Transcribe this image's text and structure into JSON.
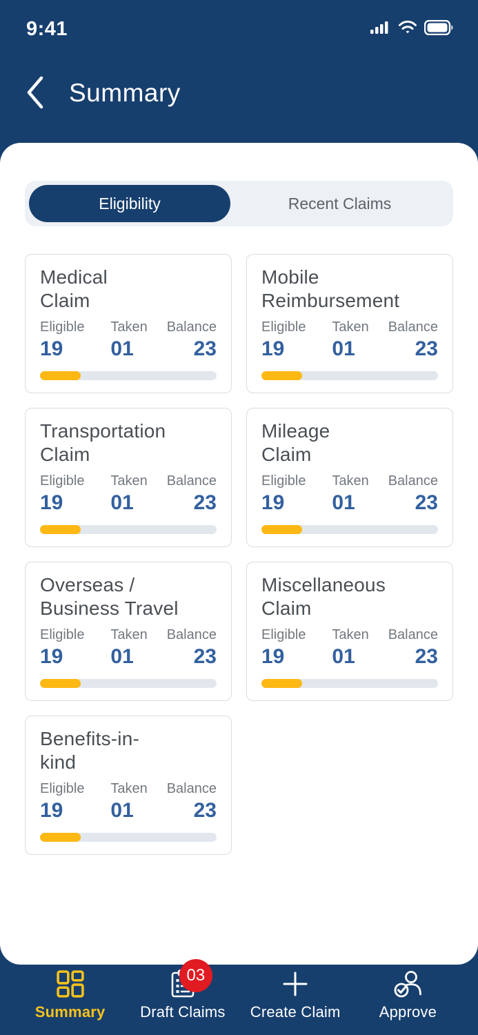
{
  "status_bar": {
    "time": "9:41",
    "icons": [
      "signal-icon",
      "wifi-icon",
      "battery-icon"
    ]
  },
  "header": {
    "back_icon": "chevron-left-icon",
    "title": "Summary"
  },
  "segmented_control": {
    "selected": "Eligibility",
    "options": [
      {
        "label": "Eligibility"
      },
      {
        "label": "Recent Claims"
      }
    ]
  },
  "cards": [
    {
      "title": "Medical\nClaim",
      "stats": [
        {
          "label": "Eligible",
          "value": "19"
        },
        {
          "label": "Taken",
          "value": "01"
        },
        {
          "label": "Balance",
          "value": "23"
        }
      ],
      "progress_percent": 23
    },
    {
      "title": "Mobile\nReimbursement",
      "stats": [
        {
          "label": "Eligible",
          "value": "19"
        },
        {
          "label": "Taken",
          "value": "01"
        },
        {
          "label": "Balance",
          "value": "23"
        }
      ],
      "progress_percent": 23
    },
    {
      "title": "Transportation\nClaim",
      "stats": [
        {
          "label": "Eligible",
          "value": "19"
        },
        {
          "label": "Taken",
          "value": "01"
        },
        {
          "label": "Balance",
          "value": "23"
        }
      ],
      "progress_percent": 23
    },
    {
      "title": "Mileage\nClaim",
      "stats": [
        {
          "label": "Eligible",
          "value": "19"
        },
        {
          "label": "Taken",
          "value": "01"
        },
        {
          "label": "Balance",
          "value": "23"
        }
      ],
      "progress_percent": 23
    },
    {
      "title": "Overseas /\nBusiness Travel",
      "stats": [
        {
          "label": "Eligible",
          "value": "19"
        },
        {
          "label": "Taken",
          "value": "01"
        },
        {
          "label": "Balance",
          "value": "23"
        }
      ],
      "progress_percent": 23
    },
    {
      "title": "Miscellaneous\nClaim",
      "stats": [
        {
          "label": "Eligible",
          "value": "19"
        },
        {
          "label": "Taken",
          "value": "01"
        },
        {
          "label": "Balance",
          "value": "23"
        }
      ],
      "progress_percent": 23
    },
    {
      "title": "Benefits-in-\nkind",
      "stats": [
        {
          "label": "Eligible",
          "value": "19"
        },
        {
          "label": "Taken",
          "value": "01"
        },
        {
          "label": "Balance",
          "value": "23"
        }
      ],
      "progress_percent": 23
    }
  ],
  "tab_bar": {
    "items": [
      {
        "label": "Summary",
        "icon": "grid-icon",
        "active": true
      },
      {
        "label": "Draft Claims",
        "icon": "draft-claims-icon",
        "active": false,
        "badge": "03"
      },
      {
        "label": "Create Claim",
        "icon": "plus-icon",
        "active": false
      },
      {
        "label": "Approve",
        "icon": "approve-person-check-icon",
        "active": false
      }
    ]
  },
  "colors": {
    "navy": "#173F6E",
    "accent_yellow": "#FDB813",
    "tab_active_yellow": "#F8C21A",
    "value_blue": "#33609F",
    "badge_red": "#E11B22",
    "segment_bg": "#EDF0F4",
    "card_border": "#D8DCE3",
    "progress_track": "#E2E7EE"
  }
}
